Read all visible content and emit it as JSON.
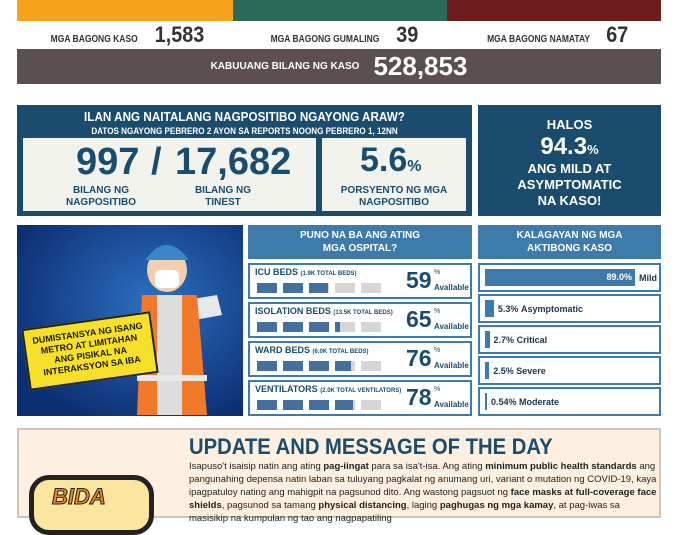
{
  "colors": {
    "orange": "#f7a21b",
    "green": "#2a6a56",
    "red": "#6e1c1e",
    "navy": "#1a4c6d",
    "blue": "#3d7bab"
  },
  "stats": {
    "new_cases_label": "MGA BAGONG KASO",
    "new_cases": "1,583",
    "recovered_label": "MGA BAGONG GUMALING",
    "recovered": "39",
    "deaths_label": "MGA BAGONG NAMATAY",
    "deaths": "67",
    "total_label": "KABUUANG BILANG NG KASO",
    "total": "528,853"
  },
  "positivity": {
    "title": "ILAN ANG NAITALANG NAGPOSITIBO NGAYONG ARAW?",
    "subtitle": "DATOS  NGAYONG  PEBRERO 2 AYON SA REPORTS NOONG  PEBRERO 1, 12NN",
    "positive": "997",
    "slash": "/",
    "tested": "17,682",
    "positive_label1": "BILANG NG",
    "positive_label2": "NAGPOSITIBO",
    "tested_label1": "BILANG NG",
    "tested_label2": "TINEST",
    "rate": "5.6",
    "rate_unit": "%",
    "rate_label1": "PORSYENTO NG MGA",
    "rate_label2": "NAGPOSITIBO"
  },
  "halos": {
    "l1": "HALOS",
    "value": "94.3",
    "unit": "%",
    "l2": "ANG MILD AT",
    "l3": "ASYMPTOMATIC",
    "l4": "NA KASO!"
  },
  "poster": {
    "text": "DUMISTANSYA NG ISANG METRO AT LIMITAHAN ANG PISIKAL NA INTERAKSYON SA IBA"
  },
  "hospitals": {
    "title1": "PUNO NA BA ANG ATING",
    "title2": "MGA OSPITAL?",
    "pct_sign": "%",
    "available": "Available",
    "rows": [
      {
        "name": "ICU BEDS",
        "total": "(1.9K TOTAL BEDS)",
        "pct": "59",
        "value": 59
      },
      {
        "name": "ISOLATION BEDS",
        "total": "(13.5K TOTAL BEDS)",
        "pct": "65",
        "value": 65
      },
      {
        "name": "WARD BEDS",
        "total": "(6.0K TOTAL BEDS)",
        "pct": "76",
        "value": 76
      },
      {
        "name": "VENTILATORS",
        "total": "(2.0K TOTAL VENTILATORS)",
        "pct": "78",
        "value": 78
      }
    ]
  },
  "cases": {
    "title1": "KALAGAYAN NG MGA",
    "title2": "AKTIBONG KASO",
    "rows": [
      {
        "pct": "89.0%",
        "label": "Mild",
        "value": 89.0
      },
      {
        "pct": "5.3%",
        "label": "Asymptomatic",
        "value": 5.3
      },
      {
        "pct": "2.7%",
        "label": "Critical",
        "value": 2.7
      },
      {
        "pct": "2.5%",
        "label": "Severe",
        "value": 2.5
      },
      {
        "pct": "0.54%",
        "label": "Moderate",
        "value": 0.54
      }
    ]
  },
  "message": {
    "logo": "BIDA SOLUSYON",
    "title": "UPDATE AND MESSAGE OF THE DAY",
    "segments": [
      {
        "t": "Isapuso't isaisip natin ang ating ",
        "b": false
      },
      {
        "t": "pag-iingat",
        "b": true
      },
      {
        "t": " para sa isa't-isa. Ang ating ",
        "b": false
      },
      {
        "t": "minimum public health standards",
        "b": true
      },
      {
        "t": " ang pangunahing depensa natin laban sa tuluyang pagkalat ng anumang uri, variant o mutation ng COVID-19, kaya ipagpatuloy nating ang mahigpit na pagsunod dito. Ang wastong pagsuot ng ",
        "b": false
      },
      {
        "t": "face masks at full-coverage face shields",
        "b": true
      },
      {
        "t": ", pagsunod sa tamang ",
        "b": false
      },
      {
        "t": "physical distancing",
        "b": true
      },
      {
        "t": ", laging ",
        "b": false
      },
      {
        "t": "paghugas ng mga kamay",
        "b": true
      },
      {
        "t": ", at pag-iwas sa masisikip na kumpulan ng tao ang nagpapatiling",
        "b": false
      }
    ]
  }
}
